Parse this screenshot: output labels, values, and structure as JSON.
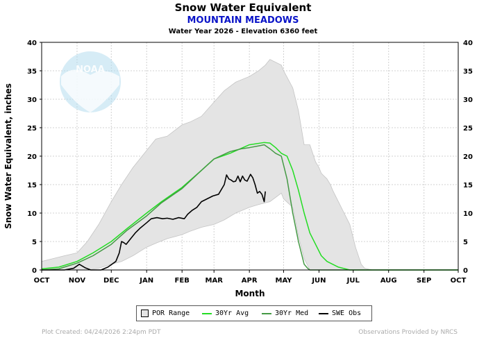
{
  "header": {
    "title": "Snow Water Equivalent",
    "station": "MOUNTAIN MEADOWS",
    "subtitle": "Water Year 2026 -  Elevation 6360 feet"
  },
  "legend": {
    "items": [
      {
        "label": "POR Range",
        "type": "box",
        "color": "#e4e4e4"
      },
      {
        "label": "30Yr Avg",
        "type": "line",
        "color": "#22dd22"
      },
      {
        "label": "30Yr Med",
        "type": "line",
        "color": "#449944"
      },
      {
        "label": "SWE Obs",
        "type": "line",
        "color": "#000000"
      }
    ]
  },
  "footer": {
    "created": "Plot Created: 04/24/2026 2:24pm PDT",
    "source": "Observations Provided by NRCS"
  },
  "logo": {
    "text": "NOAA"
  },
  "chart_data": {
    "type": "area",
    "title": "Snow Water Equivalent",
    "xlabel": "Month",
    "ylabel": "Snow Water Equivalent, inches",
    "x_ticks": [
      "OCT",
      "NOV",
      "DEC",
      "JAN",
      "FEB",
      "MAR",
      "APR",
      "MAY",
      "JUN",
      "JUL",
      "AUG",
      "SEP",
      "OCT"
    ],
    "y_ticks": [
      0,
      5,
      10,
      15,
      20,
      25,
      30,
      35,
      40
    ],
    "ylim": [
      0,
      40
    ],
    "x_unit": "days since Oct 1",
    "xlim": [
      0,
      365
    ],
    "grid": true,
    "legend_position": "bottom",
    "series": [
      {
        "name": "POR Range",
        "kind": "band",
        "color": "#e4e4e4",
        "x": [
          0,
          10,
          20,
          31,
          40,
          50,
          61,
          70,
          80,
          92,
          100,
          110,
          123,
          130,
          140,
          151,
          160,
          170,
          182,
          190,
          196,
          200,
          210,
          212,
          220,
          225,
          230,
          235,
          240,
          243,
          245,
          250,
          253,
          255,
          260,
          265,
          270,
          275,
          280,
          283,
          290,
          365
        ],
        "lower": [
          0,
          0,
          0,
          0,
          0,
          0.3,
          1,
          1.5,
          2.5,
          4,
          4.7,
          5.5,
          6.2,
          6.8,
          7.5,
          8,
          8.8,
          10,
          11,
          11.5,
          11.8,
          12,
          13.5,
          12.5,
          11,
          6,
          2,
          0,
          0,
          0,
          0,
          0,
          0,
          0,
          0,
          0,
          0,
          0,
          0,
          0,
          0,
          0
        ],
        "upper": [
          1.5,
          2,
          2.5,
          3,
          5,
          8,
          12,
          15,
          18,
          21,
          23,
          23.5,
          25.5,
          26,
          27,
          29.5,
          31.5,
          33,
          34,
          35,
          36,
          37,
          36,
          35,
          32,
          28,
          22,
          22,
          19,
          18,
          17,
          16,
          15,
          14,
          12,
          10,
          8,
          4,
          1,
          0.3,
          0,
          0
        ]
      },
      {
        "name": "30Yr Avg",
        "kind": "line",
        "color": "#22dd22",
        "x": [
          0,
          15,
          31,
          45,
          61,
          75,
          92,
          105,
          123,
          140,
          151,
          165,
          182,
          195,
          200,
          205,
          210,
          215,
          220,
          225,
          230,
          235,
          240,
          245,
          250,
          260,
          270,
          275,
          365
        ],
        "y": [
          0.2,
          0.5,
          1.5,
          3,
          5,
          7.3,
          10,
          12,
          14.5,
          17.5,
          19.5,
          20.5,
          22,
          22.4,
          22.3,
          21.5,
          20.5,
          20,
          17.5,
          14,
          10,
          6.5,
          4.5,
          2.5,
          1.5,
          0.5,
          0,
          0,
          0
        ]
      },
      {
        "name": "30Yr Med",
        "kind": "line",
        "color": "#449944",
        "x": [
          0,
          15,
          31,
          45,
          61,
          75,
          92,
          105,
          123,
          140,
          151,
          165,
          175,
          182,
          190,
          195,
          200,
          205,
          210,
          215,
          220,
          225,
          230,
          233,
          235,
          365
        ],
        "y": [
          0,
          0.2,
          1.2,
          2.5,
          4.5,
          7,
          9.5,
          11.8,
          14.3,
          17.5,
          19.5,
          20.8,
          21.3,
          21.5,
          21.8,
          22,
          21.3,
          20.5,
          20,
          16,
          10,
          5,
          1,
          0.3,
          0,
          0
        ]
      },
      {
        "name": "SWE Obs",
        "kind": "line",
        "color": "#000000",
        "x": [
          0,
          20,
          28,
          33,
          38,
          43,
          52,
          58,
          65,
          68,
          70,
          72,
          74,
          78,
          82,
          86,
          92,
          96,
          101,
          106,
          110,
          115,
          120,
          125,
          128,
          132,
          136,
          140,
          145,
          150,
          155,
          160,
          162,
          164,
          166,
          168,
          170,
          172,
          174,
          176,
          178,
          180,
          183,
          185,
          187,
          189,
          191,
          193,
          195,
          196
        ],
        "y": [
          0,
          0,
          0.3,
          1,
          0.4,
          0,
          0,
          0.5,
          1.5,
          3,
          5,
          4.8,
          4.5,
          5.5,
          6.5,
          7.3,
          8.3,
          9,
          9.2,
          9,
          9.1,
          8.9,
          9.2,
          9,
          9.8,
          10.5,
          11,
          12,
          12.5,
          13,
          13.3,
          15,
          16.7,
          16,
          15.8,
          15.5,
          15.6,
          16.5,
          15.5,
          16.5,
          15.8,
          15.6,
          16.8,
          16.2,
          15,
          13.5,
          13.8,
          13.3,
          12,
          13.8
        ]
      }
    ]
  }
}
